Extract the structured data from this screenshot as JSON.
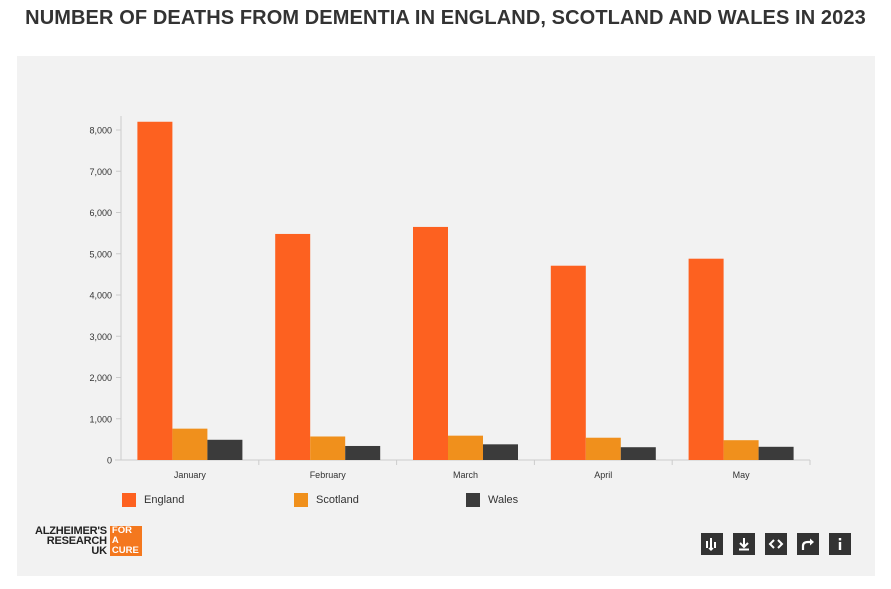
{
  "title": "NUMBER OF DEATHS FROM DEMENTIA IN ENGLAND, SCOTLAND AND WALES IN 2023",
  "chart_data": {
    "type": "bar",
    "title": "NUMBER OF DEATHS FROM DEMENTIA IN ENGLAND, SCOTLAND AND WALES IN 2023",
    "xlabel": "",
    "ylabel": "",
    "categories": [
      "January",
      "February",
      "March",
      "April",
      "May"
    ],
    "series": [
      {
        "name": "England",
        "color": "#fd6120",
        "values": [
          8200,
          5480,
          5650,
          4710,
          4880
        ]
      },
      {
        "name": "Scotland",
        "color": "#f0901c",
        "values": [
          760,
          570,
          590,
          540,
          480
        ]
      },
      {
        "name": "Wales",
        "color": "#3b3b3b",
        "values": [
          490,
          340,
          380,
          310,
          320
        ]
      }
    ],
    "ylim": [
      0,
      8000
    ],
    "yticks": [
      0,
      1000,
      2000,
      3000,
      4000,
      5000,
      6000,
      7000,
      8000
    ],
    "ytick_labels": [
      "0",
      "1,000",
      "2,000",
      "3,000",
      "4,000",
      "5,000",
      "6,000",
      "7,000",
      "8,000"
    ],
    "grid": false,
    "legend": "bottom-left"
  },
  "logo": {
    "lines": [
      "ALZHEIMER'S",
      "RESEARCH",
      "UK"
    ],
    "badge_lines": [
      "FOR A",
      "CURE"
    ],
    "color": "#f4781e"
  },
  "toolbar": [
    {
      "name": "data-icon",
      "title": "Data"
    },
    {
      "name": "download-icon",
      "title": "Download"
    },
    {
      "name": "embed-icon",
      "title": "Embed"
    },
    {
      "name": "share-icon",
      "title": "Share"
    },
    {
      "name": "info-icon",
      "title": "Info"
    }
  ]
}
